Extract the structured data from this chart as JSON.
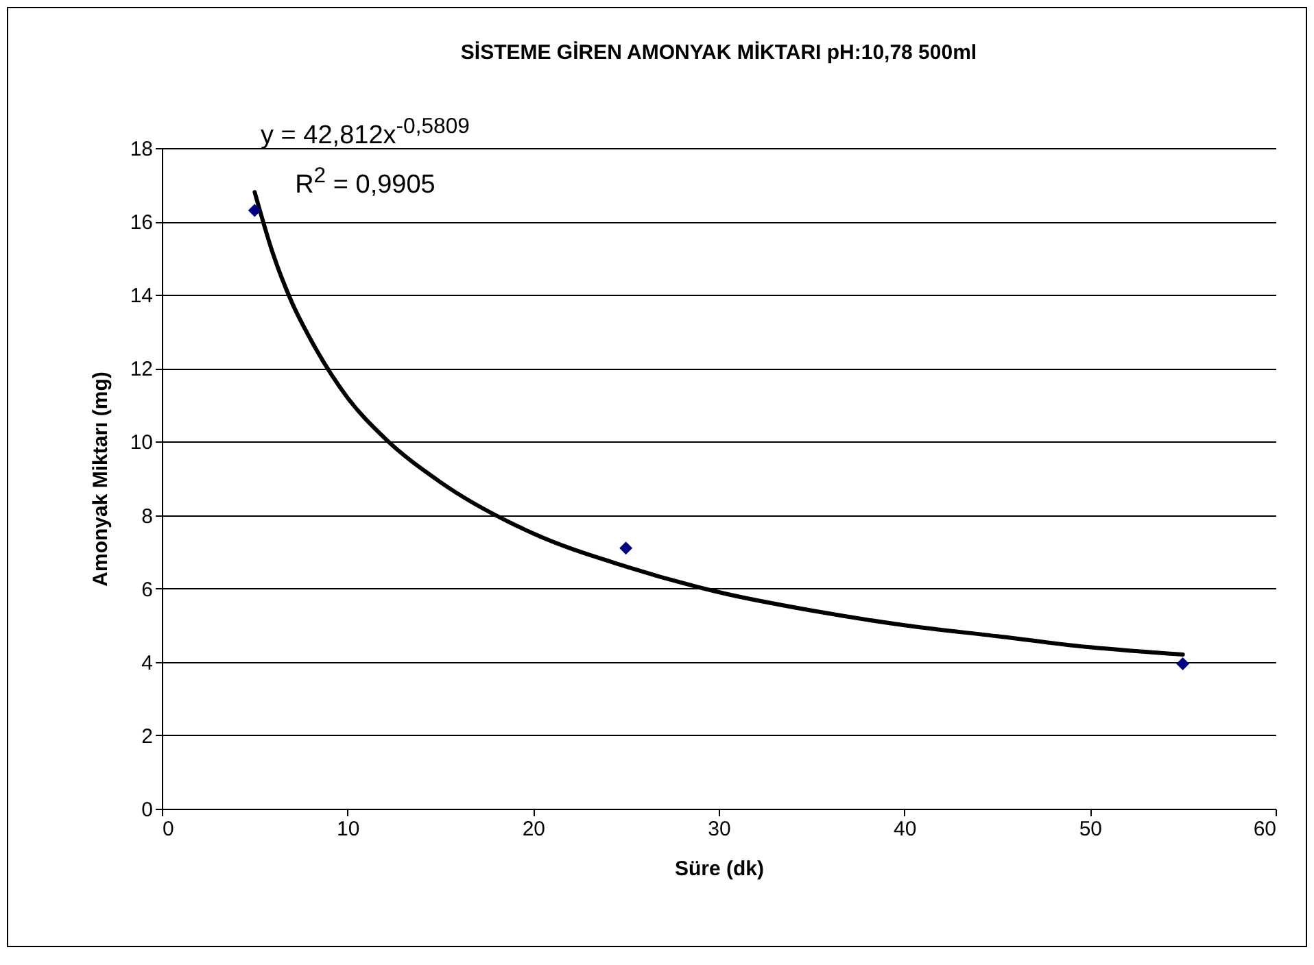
{
  "chart_data": {
    "type": "scatter",
    "title": "SİSTEME GİREN AMONYAK MİKTARI pH:10,78 500ml",
    "xlabel": "Süre (dk)",
    "ylabel": "Amonyak Miktarı (mg)",
    "series": [
      {
        "color": "#000080",
        "x": [
          5,
          25,
          55
        ],
        "values": [
          16.3,
          7.1,
          3.95
        ],
        "marker": "diamond"
      },
      {
        "type": "line",
        "color": "#000000",
        "x": [
          5,
          6,
          7,
          8,
          10,
          12,
          15,
          20,
          25,
          30,
          35,
          40,
          45,
          50,
          55
        ],
        "values": [
          16.8,
          15.1,
          13.8,
          12.8,
          11.2,
          10.1,
          8.9,
          7.5,
          6.6,
          5.9,
          5.4,
          5.0,
          4.7,
          4.4,
          4.2
        ],
        "marker": "none",
        "line_style": "solid"
      }
    ],
    "annotations": [
      "y = 42,812x$^{-0,5809}$",
      "R$^{2}$ = 0,9905"
    ],
    "xlim": [
      0,
      60
    ],
    "xticks": [
      0,
      10,
      20,
      30,
      40,
      50,
      60
    ],
    "ylim": [
      0,
      18
    ],
    "yticks": [
      0,
      2,
      4,
      6,
      8,
      10,
      12,
      14,
      16,
      18
    ],
    "grid": "y"
  }
}
